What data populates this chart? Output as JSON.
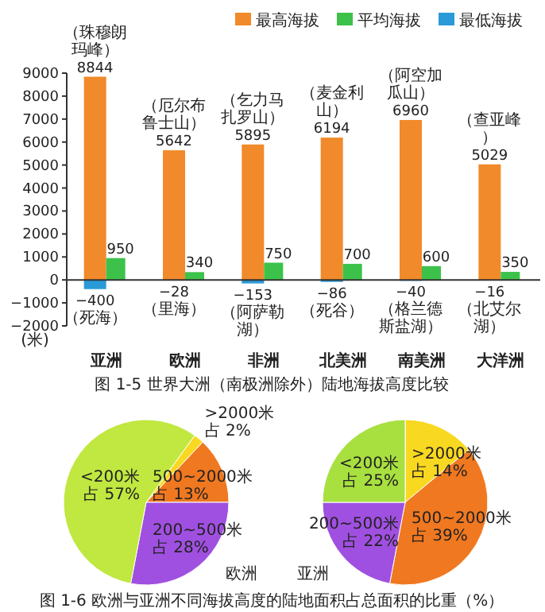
{
  "chart_data": [
    {
      "type": "bar",
      "title": "图 1-5  世界大洲（南极洲除外）陆地海拔高度比较",
      "ylabel": "(米)",
      "categories": [
        "亚洲",
        "欧洲",
        "非洲",
        "北美洲",
        "南美洲",
        "大洋洲"
      ],
      "series": [
        {
          "name": "最高海拔",
          "color": "#f08a2a",
          "values": [
            8844,
            5642,
            5895,
            6194,
            6960,
            5029
          ]
        },
        {
          "name": "平均海拔",
          "color": "#3cc24a",
          "values": [
            950,
            340,
            750,
            700,
            600,
            350
          ]
        },
        {
          "name": "最低海拔",
          "color": "#2a9ad8",
          "values": [
            -400,
            -28,
            -153,
            -86,
            -40,
            -16
          ]
        }
      ],
      "ylim": [
        -2000,
        9000
      ],
      "yticks": [
        -2000,
        -1000,
        0,
        1000,
        2000,
        3000,
        4000,
        5000,
        6000,
        7000,
        8000,
        9000
      ],
      "data_labels": true,
      "legend": "top right",
      "annotations": [
        {
          "text": "（珠穆朗玛峰）",
          "x": "亚洲",
          "y": 8844
        },
        {
          "text": "（厄尔布鲁士山）",
          "x": "欧洲",
          "y": 5642
        },
        {
          "text": "（乞力马扎罗山）",
          "x": "非洲",
          "y": 5895
        },
        {
          "text": "（麦金利山）",
          "x": "北美洲",
          "y": 6194
        },
        {
          "text": "（阿空加瓜山）",
          "x": "南美洲",
          "y": 6960
        },
        {
          "text": "（查亚峰）",
          "x": "大洋洲",
          "y": 5029
        },
        {
          "text": "（死海）",
          "x": "亚洲",
          "y": -400
        },
        {
          "text": "（里海）",
          "x": "欧洲",
          "y": -28
        },
        {
          "text": "（阿萨勒湖）",
          "x": "非洲",
          "y": -153
        },
        {
          "text": "（死谷）",
          "x": "北美洲",
          "y": -86
        },
        {
          "text": "（格兰德斯盐湖）",
          "x": "南美洲",
          "y": -40
        },
        {
          "text": "（北艾尔湖）",
          "x": "大洋洲",
          "y": -16
        }
      ]
    },
    {
      "type": "pie",
      "title": "欧洲",
      "categories": [
        ">2000米",
        "500~2000米",
        "200~500米",
        "<200米"
      ],
      "values": [
        2,
        13,
        28,
        57
      ],
      "colors": [
        "#f8d820",
        "#f07820",
        "#a050e0",
        "#c0e840"
      ],
      "value_labels": [
        "占 2%",
        "占 13%",
        "占 28%",
        "占 57%"
      ]
    },
    {
      "type": "pie",
      "title": "亚洲",
      "categories": [
        ">2000米",
        "500~2000米",
        "200~500米",
        "<200米"
      ],
      "values": [
        14,
        39,
        22,
        25
      ],
      "colors": [
        "#f8d820",
        "#f07820",
        "#a050e0",
        "#a8e040"
      ],
      "value_labels": [
        "占 14%",
        "占 39%",
        "占 22%",
        "占 25%"
      ],
      "annotations": [
        "图 1-6  欧洲与亚洲不同海拔高度的陆地面积占总面积的比重（%）"
      ]
    }
  ]
}
